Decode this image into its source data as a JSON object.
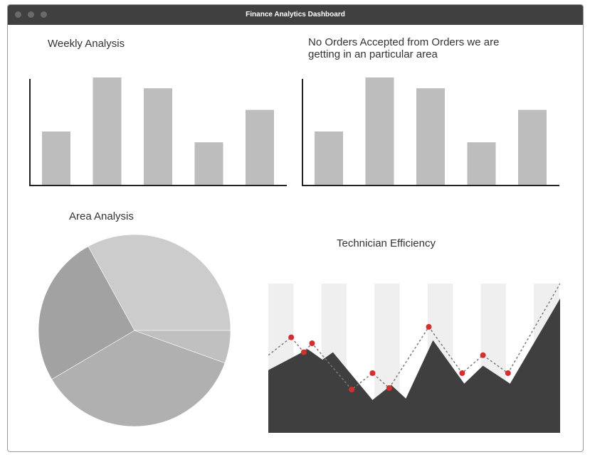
{
  "window": {
    "title": "Finance Analytics Dashboard",
    "controls": [
      "close",
      "minimize",
      "maximize"
    ]
  },
  "colors": {
    "titlebar": "#404040",
    "bar": "#bdbdbd",
    "axis": "#222222",
    "pie_slices": [
      "#cccccc",
      "#a2a2a2",
      "#b0b0b0",
      "#c0c0c0"
    ],
    "area_fill": "#3f3f3f",
    "area_bands": "#efefef",
    "marker": "#d32f2f",
    "dashed_line": "#7a7a7a"
  },
  "panels": {
    "weekly": {
      "title": "Weekly Analysis"
    },
    "orders": {
      "title": "No Orders Accepted from Orders we are getting in an particular area"
    },
    "area": {
      "title": "Area Analysis"
    },
    "technician": {
      "title": "Technician Efficiency"
    }
  },
  "chart_data": [
    {
      "id": "weekly",
      "type": "bar",
      "title": "Weekly Analysis",
      "xlabel": "",
      "ylabel": "",
      "ylim": [
        0,
        100
      ],
      "values": [
        50,
        100,
        90,
        40,
        70
      ]
    },
    {
      "id": "orders",
      "type": "bar",
      "title": "No Orders Accepted from Orders we are getting in an particular area",
      "xlabel": "",
      "ylabel": "",
      "ylim": [
        0,
        100
      ],
      "values": [
        50,
        100,
        90,
        40,
        70
      ]
    },
    {
      "id": "area",
      "type": "pie",
      "title": "Area Analysis",
      "values": [
        33,
        25.5,
        36,
        5.5
      ]
    },
    {
      "id": "technician",
      "type": "area",
      "title": "Technician Efficiency",
      "xlim": [
        0,
        14
      ],
      "ylim": [
        0,
        100
      ],
      "bands": 6,
      "area_values": [
        42,
        56,
        49,
        54,
        22,
        32,
        23,
        62,
        33,
        45,
        33,
        90
      ],
      "marker_values": [
        64,
        54,
        60,
        29,
        40,
        30,
        71,
        40,
        52,
        40
      ]
    }
  ]
}
